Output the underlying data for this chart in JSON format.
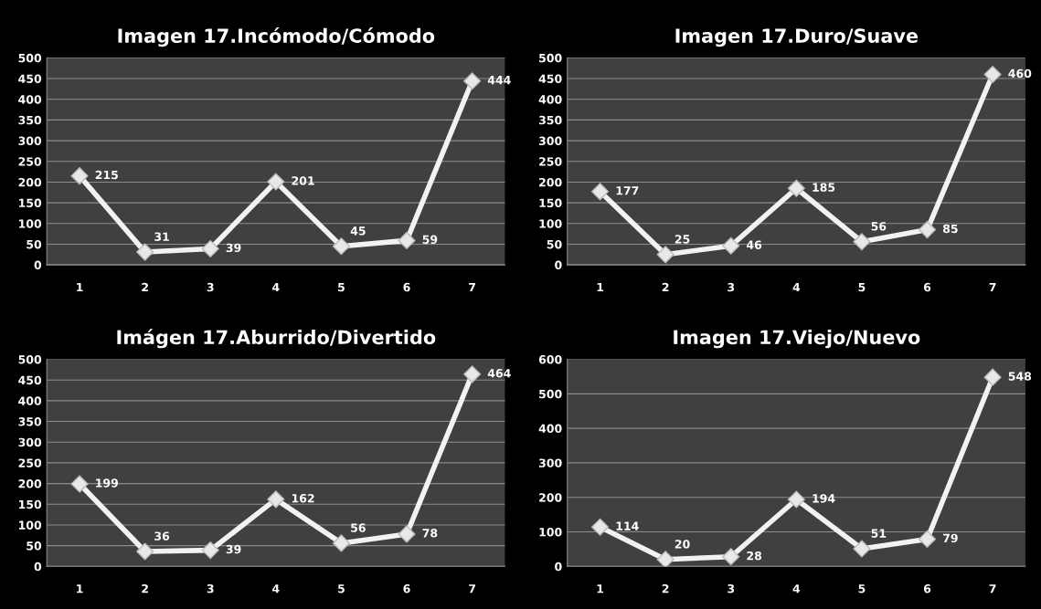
{
  "chart_data": [
    {
      "type": "line",
      "title": "Imagen 17.Incómodo/Cómodo",
      "categories": [
        "1",
        "2",
        "3",
        "4",
        "5",
        "6",
        "7"
      ],
      "values": [
        215,
        31,
        39,
        201,
        45,
        59,
        444
      ],
      "color": "#f2f2f2",
      "marker": "diamond",
      "ylim": [
        0,
        500
      ],
      "yticks": [
        0,
        50,
        100,
        150,
        200,
        250,
        300,
        350,
        400,
        450,
        500
      ],
      "grid": "y",
      "data_labels": true
    },
    {
      "type": "line",
      "title": "Imagen 17.Duro/Suave",
      "categories": [
        "1",
        "2",
        "3",
        "4",
        "5",
        "6",
        "7"
      ],
      "values": [
        177,
        25,
        46,
        185,
        56,
        85,
        460
      ],
      "color": "#f2f2f2",
      "marker": "diamond",
      "ylim": [
        0,
        500
      ],
      "yticks": [
        0,
        50,
        100,
        150,
        200,
        250,
        300,
        350,
        400,
        450,
        500
      ],
      "grid": "y",
      "data_labels": true
    },
    {
      "type": "line",
      "title": "Imágen 17.Aburrido/Divertido",
      "categories": [
        "1",
        "2",
        "3",
        "4",
        "5",
        "6",
        "7"
      ],
      "values": [
        199,
        36,
        39,
        162,
        56,
        78,
        464
      ],
      "color": "#f2f2f2",
      "marker": "diamond",
      "ylim": [
        0,
        500
      ],
      "yticks": [
        0,
        50,
        100,
        150,
        200,
        250,
        300,
        350,
        400,
        450,
        500
      ],
      "grid": "y",
      "data_labels": true
    },
    {
      "type": "line",
      "title": "Imagen 17.Viejo/Nuevo",
      "categories": [
        "1",
        "2",
        "3",
        "4",
        "5",
        "6",
        "7"
      ],
      "values": [
        114,
        20,
        28,
        194,
        51,
        79,
        548
      ],
      "color": "#f2f2f2",
      "marker": "diamond",
      "ylim": [
        0,
        600
      ],
      "yticks": [
        0,
        100,
        200,
        300,
        400,
        500,
        600
      ],
      "grid": "y",
      "data_labels": true
    }
  ]
}
